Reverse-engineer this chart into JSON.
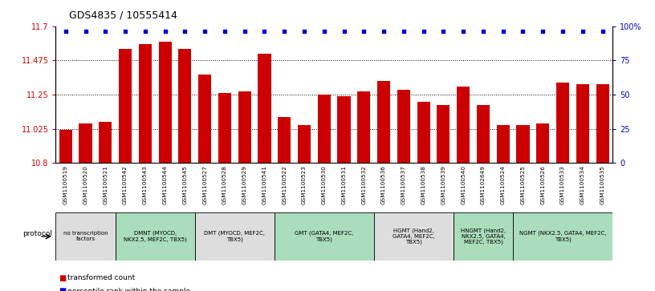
{
  "title": "GDS4835 / 10555414",
  "samples": [
    "GSM1100519",
    "GSM1100520",
    "GSM1100521",
    "GSM1100542",
    "GSM1100543",
    "GSM1100544",
    "GSM1100545",
    "GSM1100527",
    "GSM1100528",
    "GSM1100529",
    "GSM1100541",
    "GSM1100522",
    "GSM1100523",
    "GSM1100530",
    "GSM1100531",
    "GSM1100532",
    "GSM1100536",
    "GSM1100537",
    "GSM1100538",
    "GSM1100539",
    "GSM1100540",
    "GSM1102649",
    "GSM1100524",
    "GSM1100525",
    "GSM1100526",
    "GSM1100533",
    "GSM1100534",
    "GSM1100535"
  ],
  "bar_values": [
    11.02,
    11.06,
    11.07,
    11.55,
    11.58,
    11.6,
    11.55,
    11.38,
    11.26,
    11.27,
    11.52,
    11.1,
    11.05,
    11.25,
    11.24,
    11.27,
    11.34,
    11.28,
    11.2,
    11.18,
    11.3,
    11.18,
    11.05,
    11.05,
    11.06,
    11.33,
    11.32,
    11.32
  ],
  "percentile_values": [
    100,
    100,
    100,
    100,
    100,
    100,
    100,
    100,
    100,
    100,
    100,
    100,
    100,
    100,
    100,
    100,
    100,
    100,
    100,
    96,
    100,
    100,
    100,
    100,
    100,
    100,
    100,
    100
  ],
  "ylim_left": [
    10.8,
    11.7
  ],
  "yticks_left": [
    10.8,
    11.025,
    11.25,
    11.475,
    11.7
  ],
  "ytick_labels_left": [
    "10.8",
    "11.025",
    "11.25",
    "11.475",
    "11.7"
  ],
  "ylim_right": [
    0,
    100
  ],
  "yticks_right": [
    0,
    25,
    50,
    75,
    100
  ],
  "ytick_labels_right": [
    "0",
    "25",
    "50",
    "75",
    "100%"
  ],
  "bar_color": "#cc0000",
  "dot_color": "#0000cc",
  "left_tick_color": "#cc0000",
  "right_tick_color": "#0000cc",
  "groups": [
    {
      "label": "no transcription\nfactors",
      "start": 0,
      "end": 3,
      "color": "#dddddd"
    },
    {
      "label": "DMNT (MYOCD,\nNKX2.5, MEF2C, TBX5)",
      "start": 3,
      "end": 7,
      "color": "#aaddbb"
    },
    {
      "label": "DMT (MYOCD, MEF2C,\nTBX5)",
      "start": 7,
      "end": 11,
      "color": "#dddddd"
    },
    {
      "label": "GMT (GATA4, MEF2C,\nTBX5)",
      "start": 11,
      "end": 16,
      "color": "#aaddbb"
    },
    {
      "label": "HGMT (Hand2,\nGATA4, MEF2C,\nTBX5)",
      "start": 16,
      "end": 20,
      "color": "#dddddd"
    },
    {
      "label": "HNGMT (Hand2,\nNKX2.5, GATA4,\nMEF2C, TBX5)",
      "start": 20,
      "end": 23,
      "color": "#aaddbb"
    },
    {
      "label": "NGMT (NKX2.5, GATA4, MEF2C,\nTBX5)",
      "start": 23,
      "end": 28,
      "color": "#aaddbb"
    }
  ],
  "protocol_label": "protocol",
  "legend_bar_label": "transformed count",
  "legend_dot_label": "percentile rank within the sample"
}
